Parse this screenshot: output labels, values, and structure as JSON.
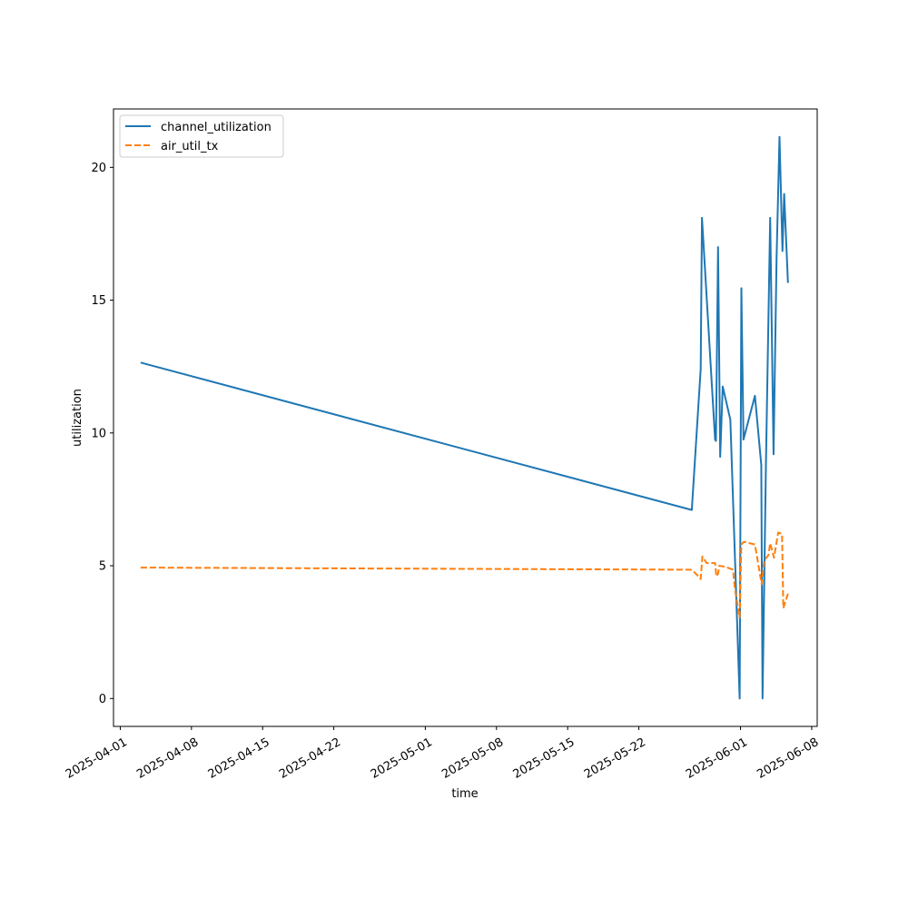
{
  "chart_data": {
    "type": "line",
    "xlabel": "time",
    "ylabel": "utilization",
    "x_type": "date",
    "xlim": [
      "2025-03-31T08:00",
      "2025-06-08T13:00"
    ],
    "ylim": [
      -1.05,
      22.2
    ],
    "grid": false,
    "legend_position": "top-left",
    "x_ticks": [
      "2025-04-01",
      "2025-04-08",
      "2025-04-15",
      "2025-04-22",
      "2025-05-01",
      "2025-05-08",
      "2025-05-15",
      "2025-05-22",
      "2025-06-01",
      "2025-06-08"
    ],
    "y_ticks": [
      0,
      5,
      10,
      15,
      20
    ],
    "series": [
      {
        "name": "channel_utilization",
        "color": "#1f77b4",
        "dash": "solid",
        "points": [
          {
            "x": "2025-04-03T00:00",
            "y": 12.65
          },
          {
            "x": "2025-05-27T05:00",
            "y": 7.1
          },
          {
            "x": "2025-05-28T02:00",
            "y": 12.4
          },
          {
            "x": "2025-05-28T05:00",
            "y": 18.1
          },
          {
            "x": "2025-05-29T12:00",
            "y": 9.75
          },
          {
            "x": "2025-05-29T14:00",
            "y": 9.7
          },
          {
            "x": "2025-05-29T19:00",
            "y": 17.0
          },
          {
            "x": "2025-05-30T00:00",
            "y": 9.1
          },
          {
            "x": "2025-05-30T06:00",
            "y": 11.75
          },
          {
            "x": "2025-05-31T00:00",
            "y": 10.5
          },
          {
            "x": "2025-05-31T22:00",
            "y": 0.0
          },
          {
            "x": "2025-06-01T02:00",
            "y": 15.45
          },
          {
            "x": "2025-06-01T07:00",
            "y": 9.75
          },
          {
            "x": "2025-06-02T10:00",
            "y": 11.4
          },
          {
            "x": "2025-06-03T01:00",
            "y": 8.8
          },
          {
            "x": "2025-06-03T04:00",
            "y": 0.0
          },
          {
            "x": "2025-06-03T12:00",
            "y": 8.8
          },
          {
            "x": "2025-06-03T22:00",
            "y": 18.1
          },
          {
            "x": "2025-06-04T06:00",
            "y": 9.2
          },
          {
            "x": "2025-06-04T13:00",
            "y": 16.5
          },
          {
            "x": "2025-06-04T20:00",
            "y": 21.15
          },
          {
            "x": "2025-06-05T03:00",
            "y": 16.85
          },
          {
            "x": "2025-06-05T07:00",
            "y": 19.0
          },
          {
            "x": "2025-06-05T16:00",
            "y": 15.65
          }
        ]
      },
      {
        "name": "air_util_tx",
        "color": "#ff7f0e",
        "dash": "dashed",
        "points": [
          {
            "x": "2025-04-03T00:00",
            "y": 4.93
          },
          {
            "x": "2025-05-27T05:00",
            "y": 4.85
          },
          {
            "x": "2025-05-28T00:00",
            "y": 4.55
          },
          {
            "x": "2025-05-28T02:00",
            "y": 4.5
          },
          {
            "x": "2025-05-28T06:00",
            "y": 5.35
          },
          {
            "x": "2025-05-28T16:00",
            "y": 5.1
          },
          {
            "x": "2025-05-29T12:00",
            "y": 5.1
          },
          {
            "x": "2025-05-29T15:00",
            "y": 4.6
          },
          {
            "x": "2025-05-29T19:00",
            "y": 4.7
          },
          {
            "x": "2025-05-29T22:00",
            "y": 5.0
          },
          {
            "x": "2025-05-30T14:00",
            "y": 4.95
          },
          {
            "x": "2025-05-31T06:00",
            "y": 4.85
          },
          {
            "x": "2025-05-31T11:00",
            "y": 4.1
          },
          {
            "x": "2025-05-31T22:00",
            "y": 3.05
          },
          {
            "x": "2025-06-01T02:00",
            "y": 5.8
          },
          {
            "x": "2025-06-01T08:00",
            "y": 5.9
          },
          {
            "x": "2025-06-02T10:00",
            "y": 5.8
          },
          {
            "x": "2025-06-03T02:00",
            "y": 4.3
          },
          {
            "x": "2025-06-03T08:00",
            "y": 5.2
          },
          {
            "x": "2025-06-03T18:00",
            "y": 5.4
          },
          {
            "x": "2025-06-03T22:00",
            "y": 5.85
          },
          {
            "x": "2025-06-04T07:00",
            "y": 5.3
          },
          {
            "x": "2025-06-04T17:00",
            "y": 6.25
          },
          {
            "x": "2025-06-05T02:00",
            "y": 6.2
          },
          {
            "x": "2025-06-05T05:00",
            "y": 3.4
          },
          {
            "x": "2025-06-05T16:00",
            "y": 3.95
          }
        ]
      }
    ]
  }
}
